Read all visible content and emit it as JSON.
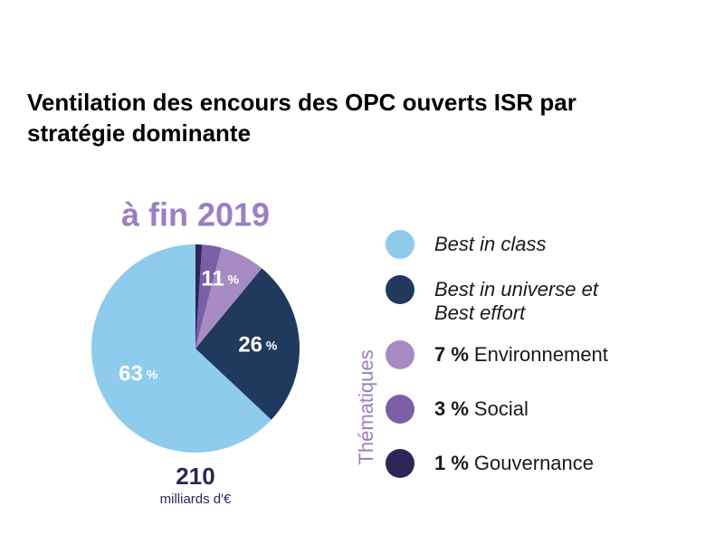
{
  "chart_data": {
    "type": "pie",
    "title": "Ventilation des encours des OPC ouverts ISR par stratégie dominante",
    "subtitle": "à fin 2019",
    "total": 210,
    "total_unit": "milliards d'€",
    "categories": [
      "Best in class",
      "Best in universe et Best effort",
      "Environnement",
      "Social",
      "Gouvernance"
    ],
    "values": [
      63,
      26,
      7,
      3,
      1
    ],
    "value_labels": [
      "63 %",
      "26 %",
      "7 %",
      "3 %",
      "1 %"
    ],
    "colors": [
      "#8ecbed",
      "#1f3a5c",
      "#a98bc4",
      "#7b5ea8",
      "#2e2656"
    ],
    "group": {
      "label": "Thématiques",
      "value": 11,
      "value_label": "11 %",
      "members": [
        2,
        3,
        4
      ]
    }
  }
}
